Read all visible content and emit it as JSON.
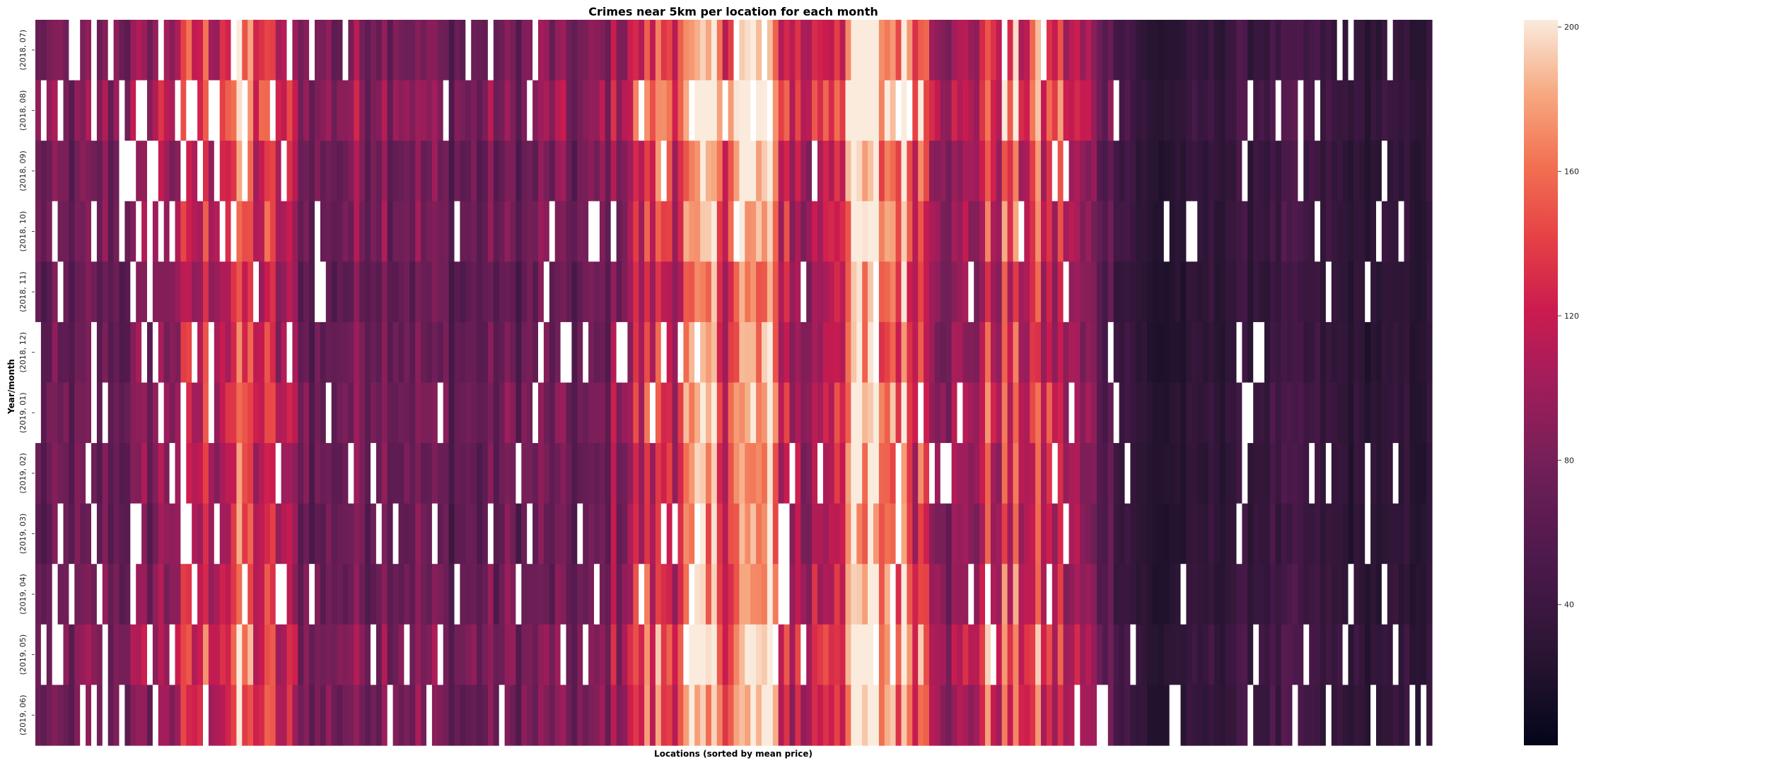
{
  "chart_data": {
    "type": "heatmap",
    "title": "Crimes near 5km per location for each month",
    "xlabel": "Locations (sorted by mean price)",
    "ylabel": "Year/month",
    "y_categories": [
      "(2018, 07)",
      "(2018, 08)",
      "(2018, 09)",
      "(2018, 10)",
      "(2018, 11)",
      "(2018, 12)",
      "(2019, 01)",
      "(2019, 02)",
      "(2019, 03)",
      "(2019, 04)",
      "(2019, 05)",
      "(2019, 06)"
    ],
    "n_locations": 250,
    "colorbar": {
      "ticks": [
        40,
        80,
        120,
        160,
        200
      ],
      "range": [
        1,
        202
      ],
      "colormap": "rocket"
    },
    "missing_color": "#ffffff",
    "column_profile": {
      "x_fraction": [
        0.0,
        0.07,
        0.12,
        0.15,
        0.2,
        0.25,
        0.3,
        0.36,
        0.4,
        0.44,
        0.48,
        0.52,
        0.55,
        0.59,
        0.63,
        0.66,
        0.69,
        0.73,
        0.8,
        0.86,
        0.9,
        0.95,
        1.0
      ],
      "mean_value": [
        70,
        85,
        130,
        150,
        75,
        95,
        72,
        80,
        75,
        140,
        170,
        188,
        100,
        192,
        175,
        90,
        145,
        128,
        22,
        40,
        45,
        30,
        32
      ]
    },
    "month_factor": [
      1.0,
      1.12,
      0.95,
      0.95,
      0.85,
      0.88,
      0.95,
      0.9,
      0.88,
      0.92,
      1.05,
      0.98
    ]
  }
}
